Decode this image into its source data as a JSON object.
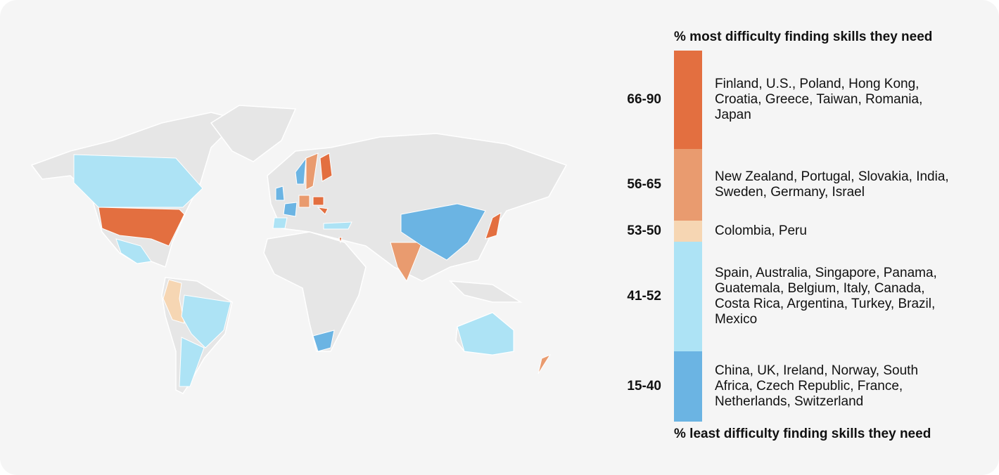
{
  "legend": {
    "top_label": "% most difficulty finding skills they need",
    "bottom_label": "% least difficulty finding skills they need",
    "bins": [
      {
        "range": "66-90",
        "color": "#e36f40",
        "countries": "Finland, U.S., Poland, Hong Kong, Croatia, Greece, Taiwan, Romania, Japan"
      },
      {
        "range": "56-65",
        "color": "#e99b6f",
        "countries": "New Zealand, Portugal, Slovakia, India, Sweden, Germany, Israel"
      },
      {
        "range": "53-50",
        "color": "#f6d6b3",
        "countries": "Colombia, Peru"
      },
      {
        "range": "41-52",
        "color": "#ade3f5",
        "countries": "Spain, Australia, Singapore, Panama, Guatemala, Belgium, Italy, Canada, Costa Rica, Argentina, Turkey, Brazil, Mexico"
      },
      {
        "range": "15-40",
        "color": "#6bb4e3",
        "countries": "China, UK, Ireland, Norway, South Africa, Czech Republic, France, Netherlands, Switzerland"
      }
    ]
  }
}
